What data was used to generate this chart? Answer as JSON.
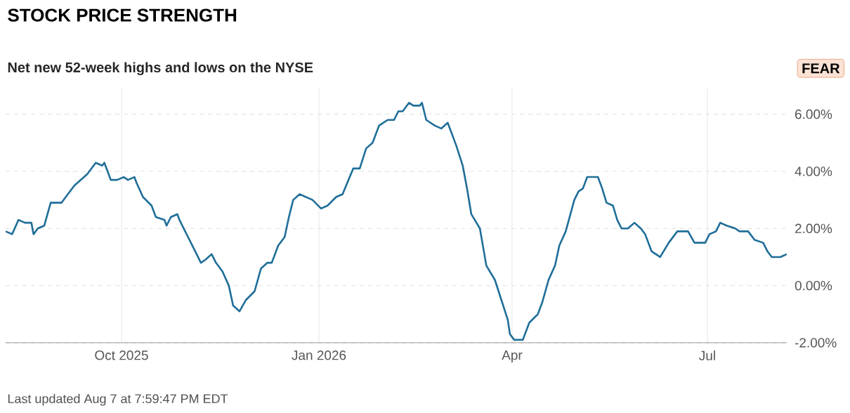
{
  "chart_data": {
    "type": "line",
    "title": "STOCK PRICE STRENGTH",
    "subtitle": "Net new 52-week highs and lows on the NYSE",
    "annotations": [
      "FEAR",
      "Last updated Aug 7 at 7:59:47 PM EDT"
    ],
    "x": [
      "2025-08-08",
      "2025-08-11",
      "2025-08-14",
      "2025-08-17",
      "2025-08-20",
      "2025-08-21",
      "2025-08-23",
      "2025-08-26",
      "2025-08-29",
      "2025-09-03",
      "2025-09-06",
      "2025-09-09",
      "2025-09-15",
      "2025-09-19",
      "2025-09-22",
      "2025-09-23",
      "2025-09-26",
      "2025-09-29",
      "2025-10-02",
      "2025-10-04",
      "2025-10-07",
      "2025-10-08",
      "2025-10-11",
      "2025-10-15",
      "2025-10-17",
      "2025-10-21",
      "2025-10-22",
      "2025-10-24",
      "2025-10-27",
      "2025-10-28",
      "2025-11-01",
      "2025-11-03",
      "2025-11-07",
      "2025-11-09",
      "2025-11-12",
      "2025-11-14",
      "2025-11-17",
      "2025-11-20",
      "2025-11-22",
      "2025-11-25",
      "2025-11-28",
      "2025-12-02",
      "2025-12-05",
      "2025-12-08",
      "2025-12-10",
      "2025-12-13",
      "2025-12-16",
      "2025-12-18",
      "2025-12-20",
      "2025-12-23",
      "2025-12-29",
      "2026-01-02",
      "2026-01-05",
      "2026-01-09",
      "2026-01-12",
      "2026-01-17",
      "2026-01-20",
      "2026-01-23",
      "2026-01-26",
      "2026-01-29",
      "2026-02-02",
      "2026-02-05",
      "2026-02-07",
      "2026-02-09",
      "2026-02-12",
      "2026-02-14",
      "2026-02-17",
      "2026-02-18",
      "2026-02-20",
      "2026-02-24",
      "2026-02-27",
      "2026-03-02",
      "2026-03-06",
      "2026-03-09",
      "2026-03-11",
      "2026-03-13",
      "2026-03-17",
      "2026-03-20",
      "2026-03-24",
      "2026-03-27",
      "2026-03-30",
      "2026-03-31",
      "2026-04-02",
      "2026-04-06",
      "2026-04-09",
      "2026-04-13",
      "2026-04-15",
      "2026-04-18",
      "2026-04-21",
      "2026-04-23",
      "2026-04-26",
      "2026-04-30",
      "2026-05-02",
      "2026-05-04",
      "2026-05-06",
      "2026-05-11",
      "2026-05-13",
      "2026-05-15",
      "2026-05-18",
      "2026-05-20",
      "2026-05-22",
      "2026-05-25",
      "2026-05-28",
      "2026-05-31",
      "2026-06-02",
      "2026-06-05",
      "2026-06-09",
      "2026-06-13",
      "2026-06-17",
      "2026-06-22",
      "2026-06-25",
      "2026-06-30",
      "2026-07-02",
      "2026-07-05",
      "2026-07-07",
      "2026-07-10",
      "2026-07-14",
      "2026-07-16",
      "2026-07-20",
      "2026-07-23",
      "2026-07-27",
      "2026-07-29",
      "2026-07-31",
      "2026-08-04",
      "2026-08-07"
    ],
    "series": [
      {
        "color": "#1f6e99",
        "values": [
          1.9,
          1.8,
          2.3,
          2.2,
          2.2,
          1.8,
          2.0,
          2.1,
          2.9,
          2.9,
          3.2,
          3.5,
          3.9,
          4.3,
          4.2,
          4.3,
          3.7,
          3.7,
          3.8,
          3.7,
          3.8,
          3.6,
          3.1,
          2.8,
          2.4,
          2.3,
          2.1,
          2.4,
          2.5,
          2.3,
          1.7,
          1.4,
          0.8,
          0.9,
          1.1,
          0.8,
          0.5,
          0.0,
          -0.7,
          -0.9,
          -0.5,
          -0.2,
          0.6,
          0.8,
          0.8,
          1.4,
          1.7,
          2.4,
          3.0,
          3.2,
          3.0,
          2.7,
          2.8,
          3.1,
          3.2,
          4.1,
          4.1,
          4.8,
          5.0,
          5.6,
          5.8,
          5.8,
          6.1,
          6.1,
          6.4,
          6.3,
          6.3,
          6.4,
          5.8,
          5.6,
          5.5,
          5.7,
          4.9,
          4.2,
          3.4,
          2.5,
          2.0,
          0.7,
          0.2,
          -0.5,
          -1.2,
          -1.7,
          -1.9,
          -1.9,
          -1.3,
          -1.0,
          -0.6,
          0.2,
          0.7,
          1.4,
          1.9,
          3.0,
          3.3,
          3.4,
          3.8,
          3.8,
          3.4,
          2.9,
          2.8,
          2.3,
          2.0,
          2.0,
          2.2,
          2.0,
          1.8,
          1.2,
          1.0,
          1.5,
          1.9,
          1.9,
          1.5,
          1.5,
          1.8,
          1.9,
          2.2,
          2.1,
          2.0,
          1.9,
          1.9,
          1.6,
          1.5,
          1.2,
          1.0,
          1.0,
          1.1
        ]
      }
    ],
    "xlim": [
      "2025-08-08",
      "2026-08-07"
    ],
    "ylim": [
      -2,
      6.9
    ],
    "xticks": [
      {
        "value": "2025-10-01",
        "label": "Oct 2025"
      },
      {
        "value": "2026-01-01",
        "label": "Jan 2026"
      },
      {
        "value": "2026-04-01",
        "label": "Apr"
      },
      {
        "value": "2026-07-01",
        "label": "Jul"
      }
    ],
    "yticks": [
      {
        "value": -2,
        "label": "-2.00%"
      },
      {
        "value": 0,
        "label": "0.00%"
      },
      {
        "value": 2,
        "label": "2.00%"
      },
      {
        "value": 4,
        "label": "4.00%"
      },
      {
        "value": 6,
        "label": "6.00%"
      }
    ],
    "grid": true
  }
}
